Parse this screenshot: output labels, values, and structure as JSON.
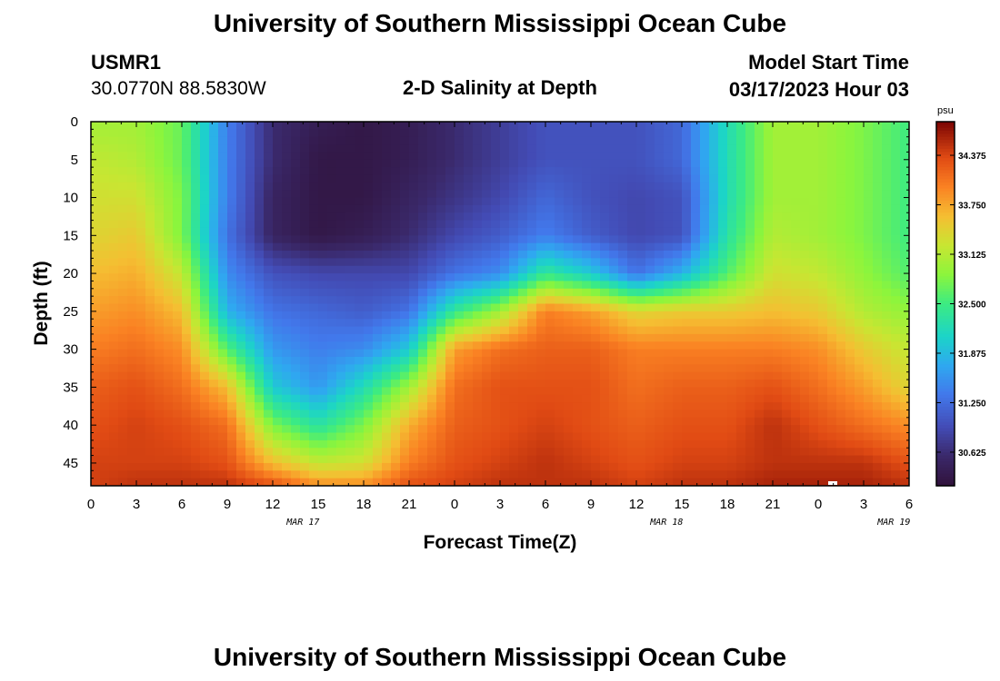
{
  "header": {
    "title": "University of Southern Mississippi Ocean Cube",
    "station_id": "USMR1",
    "coords": "30.0770N  88.5830W",
    "plot_title": "2-D Salinity at Depth",
    "model_label": "Model Start Time",
    "model_time": "03/17/2023 Hour 03"
  },
  "footer": {
    "title": "University of Southern Mississippi Ocean Cube"
  },
  "chart_data": {
    "type": "heatmap",
    "title": "2-D Salinity at Depth",
    "xlabel": "Forecast Time(Z)",
    "ylabel": "Depth (ft)",
    "x_tick_labels": [
      "0",
      "3",
      "6",
      "9",
      "12",
      "15",
      "18",
      "21",
      "0",
      "3",
      "6",
      "9",
      "12",
      "15",
      "18",
      "21",
      "0",
      "3",
      "6"
    ],
    "date_labels": [
      {
        "label": "MAR 17",
        "hour": 14
      },
      {
        "label": "MAR 18",
        "hour": 38
      },
      {
        "label": "MAR 19",
        "hour": 53
      }
    ],
    "x_range_hours": [
      0,
      54
    ],
    "y_ticks": [
      0,
      5,
      10,
      15,
      20,
      25,
      30,
      35,
      40,
      45
    ],
    "ylim": [
      48,
      0
    ],
    "colorbar": {
      "unit": "psu",
      "ticks": [
        "34.375",
        "33.750",
        "33.125",
        "32.500",
        "31.875",
        "31.250",
        "30.625"
      ],
      "tick_values": [
        34.375,
        33.75,
        33.125,
        32.5,
        31.875,
        31.25,
        30.625
      ],
      "range": [
        30.2,
        34.8
      ]
    },
    "grid": false,
    "hours": [
      0,
      3,
      6,
      9,
      12,
      15,
      18,
      21,
      24,
      27,
      30,
      33,
      36,
      39,
      42,
      45,
      48,
      51,
      54
    ],
    "depths": [
      0,
      5,
      10,
      15,
      20,
      25,
      30,
      35,
      40,
      45,
      48
    ],
    "values": [
      [
        33.0,
        33.2,
        33.3,
        33.4,
        33.6,
        33.8,
        34.0,
        34.2,
        34.3,
        34.4,
        34.4
      ],
      [
        33.0,
        33.1,
        33.3,
        33.5,
        33.7,
        33.9,
        34.1,
        34.3,
        34.4,
        34.4,
        34.5
      ],
      [
        32.7,
        32.7,
        32.8,
        32.8,
        33.2,
        33.6,
        33.9,
        34.1,
        34.3,
        34.4,
        34.5
      ],
      [
        31.4,
        31.4,
        31.4,
        31.3,
        31.5,
        31.8,
        32.6,
        33.6,
        34.1,
        34.3,
        34.5
      ],
      [
        30.6,
        30.6,
        30.5,
        30.5,
        31.0,
        31.3,
        31.6,
        32.0,
        32.8,
        33.6,
        34.3
      ],
      [
        30.4,
        30.3,
        30.3,
        30.3,
        30.9,
        31.2,
        31.4,
        31.6,
        32.3,
        33.2,
        33.9
      ],
      [
        30.3,
        30.3,
        30.3,
        30.4,
        30.9,
        31.1,
        31.5,
        32.2,
        32.8,
        33.3,
        33.9
      ],
      [
        30.4,
        30.4,
        30.5,
        30.6,
        30.9,
        31.3,
        32.0,
        33.0,
        33.7,
        34.0,
        34.3
      ],
      [
        30.6,
        30.6,
        30.7,
        30.9,
        31.3,
        32.4,
        33.8,
        34.1,
        34.2,
        34.3,
        34.4
      ],
      [
        30.8,
        30.8,
        30.9,
        31.1,
        31.5,
        33.0,
        34.1,
        34.3,
        34.3,
        34.4,
        34.5
      ],
      [
        31.0,
        31.0,
        31.2,
        31.4,
        32.4,
        34.0,
        34.2,
        34.3,
        34.4,
        34.5,
        34.5
      ],
      [
        31.0,
        31.0,
        31.0,
        31.1,
        32.0,
        33.8,
        34.2,
        34.3,
        34.3,
        34.4,
        34.5
      ],
      [
        31.0,
        31.0,
        30.9,
        30.9,
        31.3,
        33.4,
        34.0,
        34.1,
        34.2,
        34.3,
        34.4
      ],
      [
        31.2,
        31.2,
        31.0,
        31.0,
        31.8,
        33.5,
        34.0,
        34.2,
        34.3,
        34.4,
        34.5
      ],
      [
        32.2,
        32.2,
        32.2,
        32.3,
        32.6,
        33.5,
        34.0,
        34.2,
        34.3,
        34.4,
        34.5
      ],
      [
        33.0,
        33.0,
        33.0,
        33.1,
        33.3,
        33.6,
        34.0,
        34.3,
        34.5,
        34.5,
        34.6
      ],
      [
        33.0,
        33.0,
        33.0,
        33.0,
        33.2,
        33.5,
        33.9,
        34.1,
        34.3,
        34.5,
        34.6
      ],
      [
        32.8,
        32.8,
        32.8,
        32.8,
        32.9,
        33.1,
        33.5,
        33.8,
        34.1,
        34.5,
        34.6
      ],
      [
        32.5,
        32.5,
        32.5,
        32.5,
        32.6,
        32.9,
        33.2,
        33.4,
        33.9,
        34.3,
        34.5
      ]
    ]
  }
}
